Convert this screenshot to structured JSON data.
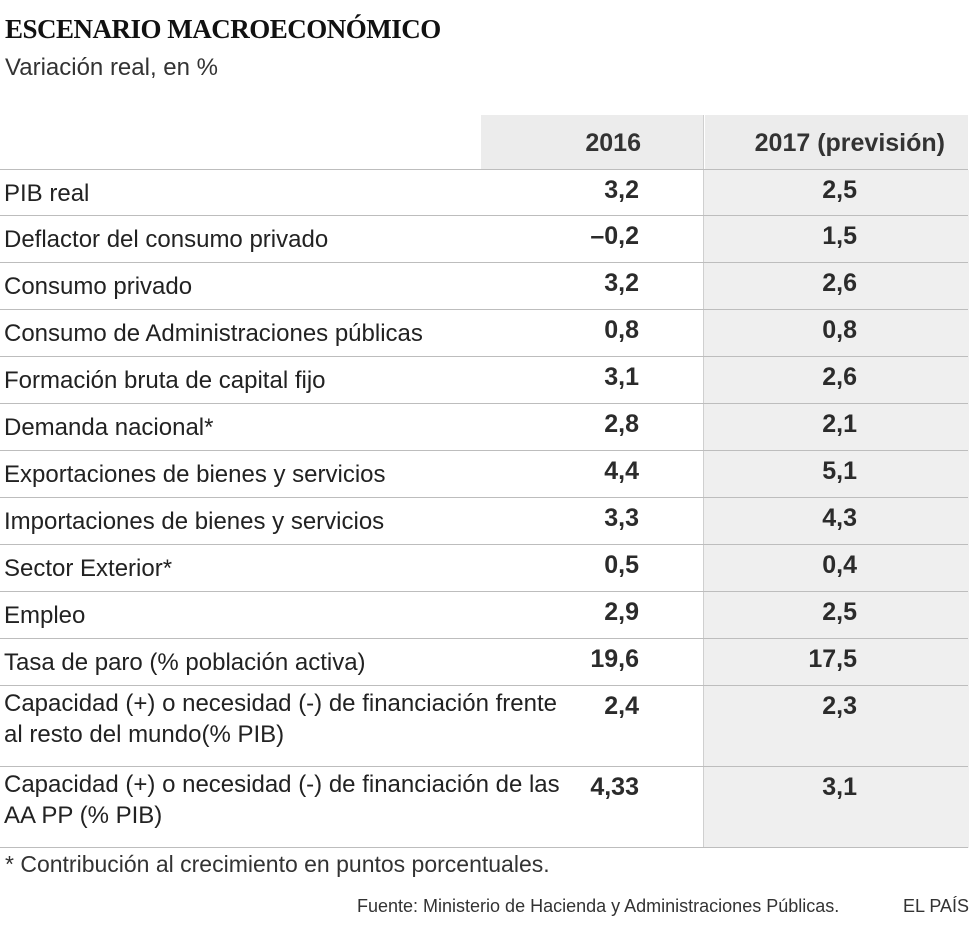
{
  "title": "ESCENARIO MACROECONÓMICO",
  "subtitle": "Variación real, en %",
  "table": {
    "headers": [
      "2016",
      "2017 (previsión)"
    ],
    "rows": [
      {
        "label": "PIB real",
        "v2016": "3,2",
        "v2017": "2,5"
      },
      {
        "label": "Deflactor del consumo privado",
        "v2016": "–0,2",
        "v2017": "1,5"
      },
      {
        "label": "Consumo privado",
        "v2016": "3,2",
        "v2017": "2,6"
      },
      {
        "label": "Consumo de Administraciones públicas",
        "v2016": "0,8",
        "v2017": "0,8"
      },
      {
        "label": "Formación bruta de capital fijo",
        "v2016": "3,1",
        "v2017": "2,6"
      },
      {
        "label": "Demanda nacional*",
        "v2016": "2,8",
        "v2017": "2,1"
      },
      {
        "label": "Exportaciones de bienes y servicios",
        "v2016": "4,4",
        "v2017": "5,1"
      },
      {
        "label": "Importaciones de bienes y servicios",
        "v2016": "3,3",
        "v2017": "4,3"
      },
      {
        "label": "Sector Exterior*",
        "v2016": "0,5",
        "v2017": "0,4"
      },
      {
        "label": "Empleo",
        "v2016": "2,9",
        "v2017": "2,5"
      },
      {
        "label": "Tasa de paro (% población activa)",
        "v2016": "19,6",
        "v2017": "17,5"
      },
      {
        "label": "Capacidad (+) o necesidad (-) de financiación frente al resto del mundo(% PIB)",
        "v2016": "2,4",
        "v2017": "2,3"
      },
      {
        "label": "Capacidad (+) o necesidad (-) de financiación de las AA PP (% PIB)",
        "v2016": "4,33",
        "v2017": "3,1"
      }
    ]
  },
  "footnote": "* Contribución al crecimiento en puntos porcentuales.",
  "source": "Fuente: Ministerio de Hacienda y Administraciones Públicas.",
  "brand": "EL PAÍS"
}
